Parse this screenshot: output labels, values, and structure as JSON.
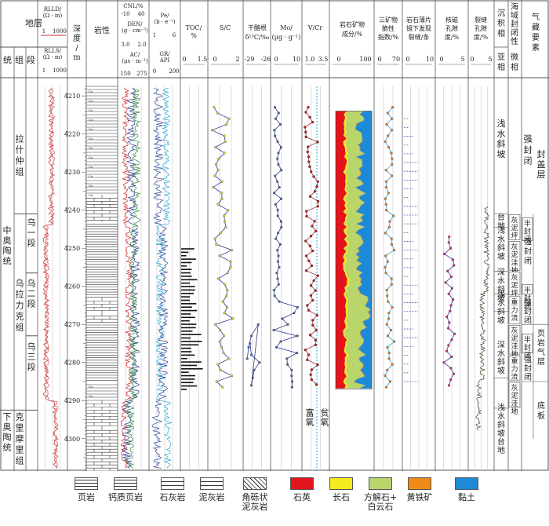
{
  "header": {
    "stratum": "地层",
    "system": "统",
    "group": "组",
    "member": "段",
    "rlld": "RLLD/\n(Ω · m)",
    "rlld_range": [
      "1",
      "1000"
    ],
    "rlls": "RLLS/\n(Ω · m)",
    "rlls_range": [
      "1",
      "1000"
    ],
    "depth": "深度/m",
    "lithology": "岩性",
    "cnl": "CNL/%",
    "cnl_range": [
      "-10",
      "40"
    ],
    "den": "DEN/\n(g · cm⁻³)",
    "den_range": [
      "3.0",
      "2.0"
    ],
    "ac": "AC/\n(μs · m⁻¹)",
    "ac_range": [
      "150",
      "275"
    ],
    "pe": "Pe/\n(b · e⁻¹)",
    "pe_range": [
      "1",
      "6"
    ],
    "gr": "GR/\nAPI",
    "gr_range": [
      "0",
      "200"
    ],
    "toc": "TOC/\n%",
    "toc_range": [
      "0",
      "1.5"
    ],
    "sc": "S/C",
    "sc_range": [
      "0",
      "2"
    ],
    "d13c": "干酪根\nδ¹³C/‰",
    "d13c_range": [
      "-29",
      "-26"
    ],
    "mo": "Mo/\n(μg · g⁻¹)",
    "mo_range": [
      "0",
      "10"
    ],
    "vcr": "V/Cr",
    "vcr_range": [
      "1.0",
      "3.5"
    ],
    "mineral": "岩石矿物\n成分/%",
    "mineral_range": [
      "0",
      "100"
    ],
    "brittle": "三矿物\n脆性\n指数/%",
    "brittle_range": [
      "0",
      "70"
    ],
    "fracture": "岩石薄片\n镜下发现\n裂缝/条",
    "fracture_range": [
      "0",
      "10"
    ],
    "nmr": "核磁\n孔隙\n度/%",
    "nmr_range": [
      "0",
      "5"
    ],
    "fracpor": "裂缝\n孔隙\n度/%",
    "fracpor_range": [
      "0",
      "5"
    ],
    "facies": "沉积\n相",
    "subfacies": "亚相",
    "microfacies": "微相",
    "seal": "海域封闭性",
    "element": "气藏要素"
  },
  "strata": {
    "system_upper": "中奥陶统",
    "system_lower": "下奥陶统",
    "group1": "拉什仲组",
    "group2": "乌拉力克组",
    "group3": "克里摩里组",
    "member1": "乌一段",
    "member2": "乌二段",
    "member3": "乌三段"
  },
  "depths": [
    "4210",
    "4220",
    "4230",
    "4240",
    "4250",
    "4260",
    "4270",
    "4280",
    "4290",
    "4300"
  ],
  "lith_mark": "Ca",
  "vcr_labels": {
    "rich": "富\n\n\n\n氧",
    "poor": "贫\n\n\n\n氧"
  },
  "facies": {
    "sub1": "浅水斜坡",
    "sub2": "台地",
    "sub3": "浅水斜坡",
    "sub4": "深水斜坡",
    "sub5": "浅水斜坡",
    "sub6": "深水斜坡",
    "sub7": "浅水斜坡",
    "sub8": "台地",
    "micro": [
      "灰泥坪",
      "灰泥洼地",
      "灰泥坪",
      "重力流",
      "灰泥洼地",
      "重力流",
      "灰泥洼地"
    ]
  },
  "seal": {
    "s1": "强封闭",
    "s2": "半封闭",
    "s3": "强封闭",
    "s4": "半封闭",
    "s5": "强封闭",
    "s6": "半封闭",
    "s7": "强封闭"
  },
  "element": {
    "e1": "封\n\n盖\n\n层",
    "e2": "页岩气层",
    "e3": "底板"
  },
  "legend": [
    {
      "label": "页岩",
      "pattern": "shale"
    },
    {
      "label": "钙质页岩",
      "pattern": "cashale"
    },
    {
      "label": "石灰岩",
      "pattern": "lime"
    },
    {
      "label": "泥灰岩",
      "pattern": "marl"
    },
    {
      "label": "角砾状\n泥灰岩",
      "pattern": "breccia"
    },
    {
      "label": "石英",
      "color": "#e3141b"
    },
    {
      "label": "长石",
      "color": "#f4ea1c"
    },
    {
      "label": "方解石+\n白云石",
      "color": "#b8d66a"
    },
    {
      "label": "黄铁矿",
      "color": "#f08a19"
    },
    {
      "label": "黏土",
      "color": "#1c8ad6"
    }
  ],
  "colors": {
    "quartz": "#e3141b",
    "feldspar": "#f4ea1c",
    "calcite": "#b8d66a",
    "pyrite": "#f08a19",
    "clay": "#1c8ad6",
    "curve_blue": "#2b3a8f",
    "curve_red": "#d2282e",
    "curve_green": "#2e8b3a",
    "curve_cyan": "#27a8d6"
  }
}
